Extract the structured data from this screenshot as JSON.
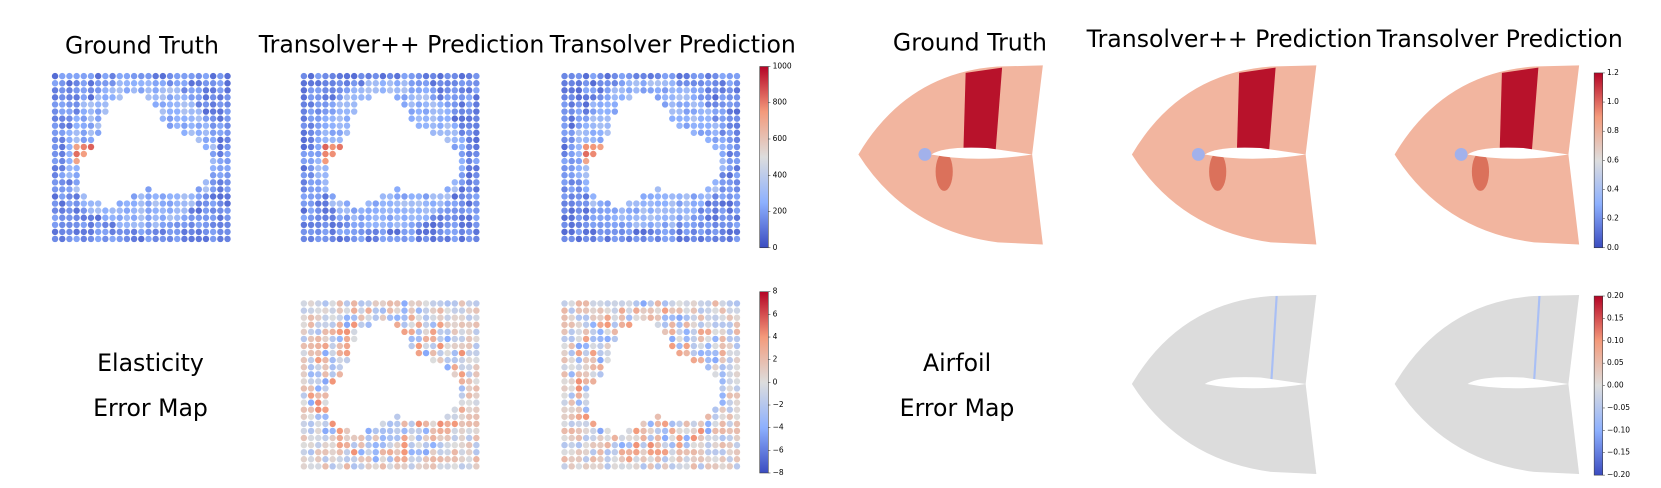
{
  "left": {
    "titles": [
      "Ground Truth",
      "Transolver++ Prediction",
      "Transolver Prediction"
    ],
    "row_label": [
      "Elasticity",
      "Error Map"
    ],
    "colorbar_top": [
      "0",
      "200",
      "400",
      "600",
      "800",
      "1000"
    ],
    "colorbar_bottom": [
      "−8",
      "−6",
      "−4",
      "−2",
      "0",
      "2",
      "4",
      "6",
      "8"
    ]
  },
  "right": {
    "titles": [
      "Ground Truth",
      "Transolver++ Prediction",
      "Transolver Prediction"
    ],
    "row_label": [
      "Airfoil",
      "Error Map"
    ],
    "colorbar_top": [
      "0.0",
      "0.2",
      "0.4",
      "0.6",
      "0.8",
      "1.0",
      "1.2"
    ],
    "colorbar_bottom": [
      "−0.20",
      "−0.15",
      "−0.10",
      "−0.05",
      "0.00",
      "0.05",
      "0.10",
      "0.15",
      "0.20"
    ]
  }
}
